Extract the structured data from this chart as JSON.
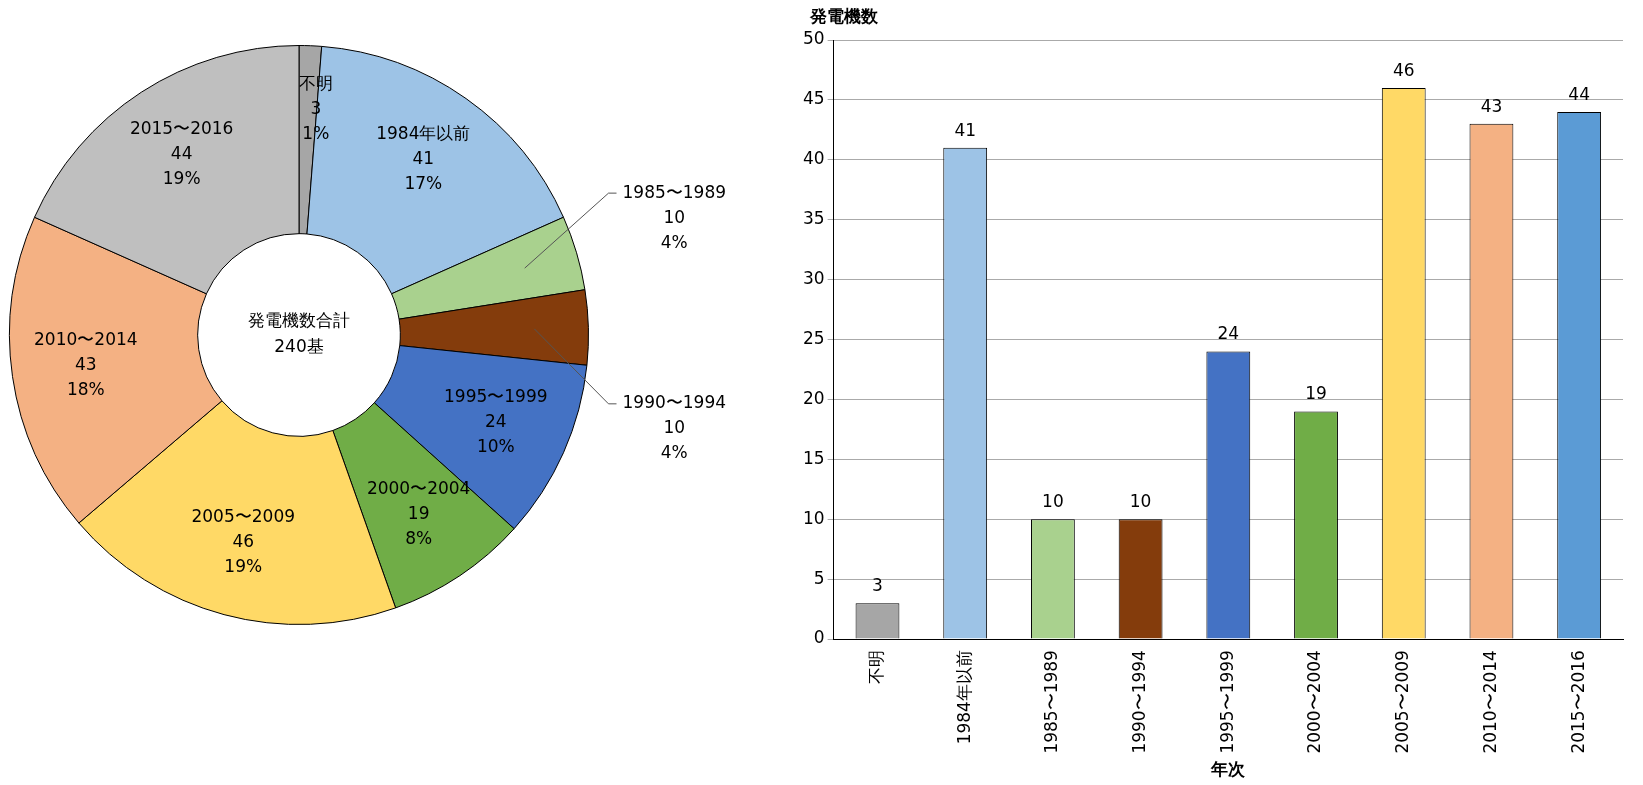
{
  "chart_data": [
    {
      "type": "donut",
      "categories": [
        "不明",
        "1984年以前",
        "1985〜1989",
        "1990〜1994",
        "1995〜1999",
        "2000〜2004",
        "2005〜2009",
        "2010〜2014",
        "2015〜2016"
      ],
      "values": [
        3,
        41,
        10,
        10,
        24,
        19,
        46,
        43,
        44
      ],
      "colors": [
        "#a6a6a6",
        "#9dc3e6",
        "#a9d18e",
        "#843c0c",
        "#4472c4",
        "#70ad47",
        "#ffd966",
        "#f4b183",
        "#bfbfbf"
      ],
      "value_labels": [
        "3\n1%",
        "41\n17%",
        "10\n4%",
        "10\n4%",
        "24\n10%",
        "19\n8%",
        "46\n19%",
        "43\n18%",
        "44\n19%"
      ],
      "annotations": [
        "発電機数合計",
        "240基"
      ],
      "legend": false
    },
    {
      "type": "bar",
      "categories": [
        "不明",
        "1984年以前",
        "1985〜1989",
        "1990〜1994",
        "1995〜1999",
        "2000〜2004",
        "2005〜2009",
        "2010〜2014",
        "2015〜2016"
      ],
      "values": [
        3,
        41,
        10,
        10,
        24,
        19,
        46,
        43,
        44
      ],
      "colors": [
        "#a6a6a6",
        "#9dc3e6",
        "#a9d18e",
        "#843c0c",
        "#4472c4",
        "#70ad47",
        "#ffd966",
        "#f4b183",
        "#5b9bd5"
      ],
      "ylabel": "発電機数",
      "xlabel": "年次",
      "ylim": [
        0,
        50
      ],
      "yticks": [
        0,
        5,
        10,
        15,
        20,
        25,
        30,
        35,
        40,
        45,
        50
      ],
      "grid": "y",
      "data_labels": true,
      "legend": false
    }
  ]
}
